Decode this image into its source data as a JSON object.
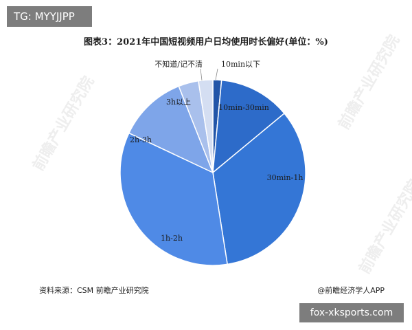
{
  "overlay_top": "TG: MYYJJPP",
  "overlay_bottom": "fox-xksports.com",
  "source": "资料来源：CSM 前瞻产业研究院",
  "brand": "@前瞻经济学人APP",
  "chart_data": {
    "type": "pie",
    "title": "图表3：2021年中国短视频用户日均使用时长偏好(单位：%)",
    "slices": [
      {
        "label": "10min以下",
        "value": 1.5,
        "color": "#2255a8"
      },
      {
        "label": "10min-30min",
        "value": 12.5,
        "color": "#2d6bc9"
      },
      {
        "label": "30min-1h",
        "value": 33.5,
        "color": "#3476d6"
      },
      {
        "label": "1h-2h",
        "value": 34.5,
        "color": "#4f8ae6"
      },
      {
        "label": "2h-3h",
        "value": 12.0,
        "color": "#7ea5e9"
      },
      {
        "label": "3h以上",
        "value": 3.5,
        "color": "#a9c0ec"
      },
      {
        "label": "不知道/记不清",
        "value": 2.5,
        "color": "#d4def2"
      }
    ],
    "label_placement": "inside-and-outside",
    "legend": "none"
  }
}
